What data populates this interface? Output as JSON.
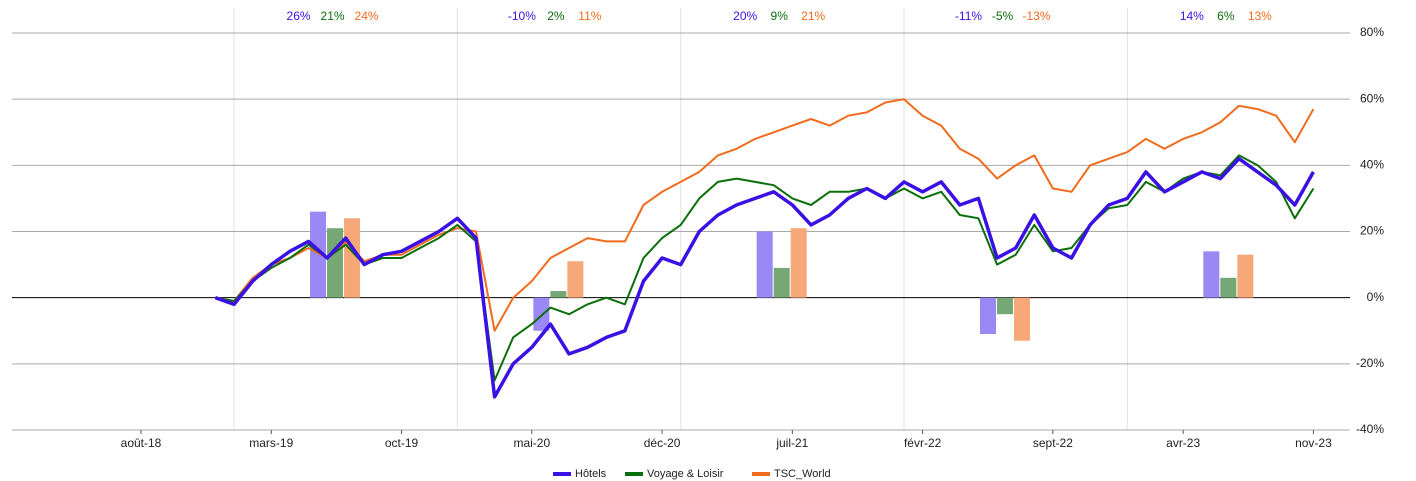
{
  "chart_data": [
    {
      "type": "line",
      "x": [
        "2018-12",
        "2019-01",
        "2019-02",
        "2019-03",
        "2019-04",
        "2019-05",
        "2019-06",
        "2019-07",
        "2019-08",
        "2019-09",
        "2019-10",
        "2019-11",
        "2019-12",
        "2020-01",
        "2020-02",
        "2020-03",
        "2020-04",
        "2020-05",
        "2020-06",
        "2020-07",
        "2020-08",
        "2020-09",
        "2020-10",
        "2020-11",
        "2020-12",
        "2021-01",
        "2021-02",
        "2021-03",
        "2021-04",
        "2021-05",
        "2021-06",
        "2021-07",
        "2021-08",
        "2021-09",
        "2021-10",
        "2021-11",
        "2021-12",
        "2022-01",
        "2022-02",
        "2022-03",
        "2022-04",
        "2022-05",
        "2022-06",
        "2022-07",
        "2022-08",
        "2022-09",
        "2022-10",
        "2022-11",
        "2022-12",
        "2023-01",
        "2023-02",
        "2023-03",
        "2023-04",
        "2023-05",
        "2023-06",
        "2023-07",
        "2023-08",
        "2023-09",
        "2023-10",
        "2023-11"
      ],
      "series": [
        {
          "name": "Hôtels",
          "color": "#3a10e5",
          "values": [
            0,
            -2,
            5,
            10,
            14,
            17,
            12,
            18,
            10,
            13,
            14,
            17,
            20,
            24,
            18,
            -30,
            -20,
            -15,
            -8,
            -17,
            -15,
            -12,
            -10,
            5,
            12,
            10,
            20,
            25,
            28,
            30,
            32,
            28,
            22,
            25,
            30,
            33,
            30,
            35,
            32,
            35,
            28,
            30,
            12,
            15,
            25,
            15,
            12,
            22,
            28,
            30,
            38,
            32,
            35,
            38,
            36,
            42,
            38,
            34,
            28,
            38
          ]
        },
        {
          "name": "Voyage & Loisir",
          "color": "#0a6e0a",
          "values": [
            0,
            -1,
            5,
            9,
            12,
            16,
            12,
            16,
            10,
            12,
            12,
            15,
            18,
            22,
            17,
            -25,
            -12,
            -8,
            -3,
            -5,
            -2,
            0,
            -2,
            12,
            18,
            22,
            30,
            35,
            36,
            35,
            34,
            30,
            28,
            32,
            32,
            33,
            30,
            33,
            30,
            32,
            25,
            24,
            10,
            13,
            22,
            14,
            15,
            22,
            27,
            28,
            35,
            32,
            36,
            38,
            37,
            43,
            40,
            35,
            24,
            33
          ]
        },
        {
          "name": "TSC_World",
          "color": "#f26b1d",
          "values": [
            0,
            -1,
            6,
            10,
            12,
            15,
            12,
            17,
            11,
            13,
            13,
            16,
            19,
            21,
            20,
            -10,
            0,
            5,
            12,
            15,
            18,
            17,
            17,
            28,
            32,
            35,
            38,
            43,
            45,
            48,
            50,
            52,
            54,
            52,
            55,
            56,
            59,
            60,
            55,
            52,
            45,
            42,
            36,
            40,
            43,
            33,
            32,
            40,
            42,
            44,
            48,
            45,
            48,
            50,
            53,
            58,
            57,
            55,
            47,
            57
          ]
        }
      ],
      "xticks": [
        {
          "value": "2018-08",
          "label": "août-18"
        },
        {
          "value": "2019-03",
          "label": "mars-19"
        },
        {
          "value": "2019-10",
          "label": "oct-19"
        },
        {
          "value": "2020-05",
          "label": "mai-20"
        },
        {
          "value": "2020-12",
          "label": "déc-20"
        },
        {
          "value": "2021-07",
          "label": "juil-21"
        },
        {
          "value": "2022-02",
          "label": "févr-22"
        },
        {
          "value": "2022-09",
          "label": "sept-22"
        },
        {
          "value": "2023-04",
          "label": "avr-23"
        },
        {
          "value": "2023-11",
          "label": "nov-23"
        }
      ],
      "ylim": [
        -40,
        80
      ],
      "yticks": [
        {
          "value": -40,
          "label": "-40%"
        },
        {
          "value": -20,
          "label": "-20%"
        },
        {
          "value": 0,
          "label": "0%"
        },
        {
          "value": 20,
          "label": "20%"
        },
        {
          "value": 40,
          "label": "40%"
        },
        {
          "value": 60,
          "label": "60%"
        },
        {
          "value": 80,
          "label": "80%"
        }
      ],
      "grid": true,
      "legend": "bottom"
    },
    {
      "type": "bar",
      "series": [
        {
          "color": "#9a88f5",
          "values": [
            26,
            -10,
            20,
            -11,
            14
          ],
          "value_labels": [
            "26%",
            "-10%",
            "20%",
            "-11%",
            "14%"
          ]
        },
        {
          "color": "#76a876",
          "values": [
            21,
            2,
            9,
            -5,
            6
          ],
          "value_labels": [
            "21%",
            "2%",
            "9%",
            "-5%",
            "6%"
          ]
        },
        {
          "color": "#f7a878",
          "values": [
            24,
            11,
            21,
            -13,
            13
          ],
          "value_labels": [
            "24%",
            "11%",
            "21%",
            "-13%",
            "13%"
          ]
        }
      ]
    }
  ]
}
